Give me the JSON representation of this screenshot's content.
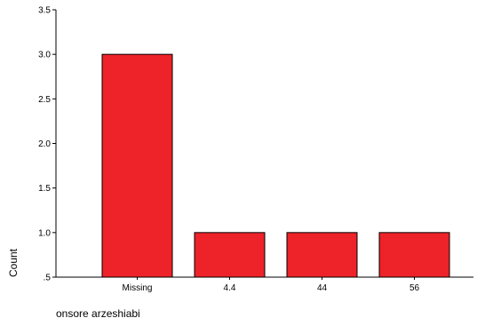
{
  "chart_data": {
    "type": "bar",
    "categories": [
      "Missing",
      "4.4",
      "44",
      "56"
    ],
    "values": [
      3,
      1,
      1,
      1
    ],
    "xlabel": "onsore arzeshiabi",
    "ylabel": "Count",
    "ylim": [
      0.5,
      3.5
    ],
    "yticks": [
      ".5",
      "1.0",
      "1.5",
      "2.0",
      "2.5",
      "3.0",
      "3.5"
    ],
    "bar_color": "#ee2229",
    "bar_edge_color": "#000000",
    "grid": false,
    "legend": "none"
  }
}
